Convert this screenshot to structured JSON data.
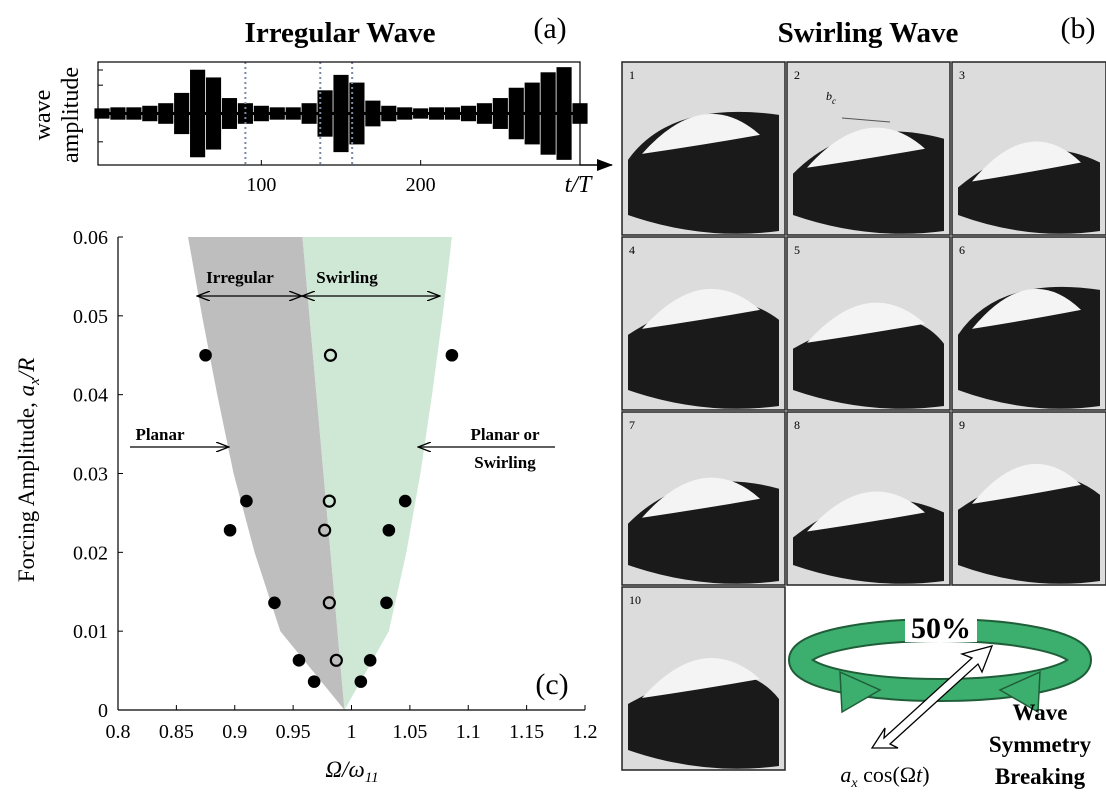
{
  "chart_data": [
    {
      "type": "line",
      "title": "Irregular Wave",
      "panel_label": "(a)",
      "ylabel": [
        "wave",
        "amplitude"
      ],
      "xlabel": "t/T",
      "x": [
        0,
        10,
        20,
        30,
        40,
        50,
        60,
        70,
        80,
        90,
        100,
        110,
        120,
        130,
        140,
        150,
        160,
        170,
        180,
        190,
        200,
        210,
        220,
        230,
        240,
        250,
        260,
        270,
        280,
        290,
        300
      ],
      "values": [
        0.1,
        0.12,
        0.12,
        0.15,
        0.2,
        0.4,
        0.85,
        0.7,
        0.3,
        0.2,
        0.15,
        0.12,
        0.12,
        0.2,
        0.45,
        0.75,
        0.6,
        0.25,
        0.15,
        0.12,
        0.1,
        0.12,
        0.12,
        0.15,
        0.2,
        0.3,
        0.5,
        0.6,
        0.8,
        0.9,
        0.2
      ],
      "color": "#000000",
      "xlim": [
        0,
        300
      ],
      "ylim": [
        -1,
        1
      ],
      "xticks": [
        100,
        200
      ],
      "vlines": [
        90,
        137,
        157
      ]
    },
    {
      "type": "scatter",
      "panel_label": "(c)",
      "xlabel": [
        "Ω/ω",
        "11"
      ],
      "ylabel": [
        "Forcing Amplitude, ",
        "a",
        "x",
        "/R"
      ],
      "xlim": [
        0.8,
        1.2
      ],
      "xticks": [
        0.8,
        0.85,
        0.9,
        0.95,
        1,
        1.05,
        1.1,
        1.15,
        1.2
      ],
      "ylim": [
        0,
        0.06
      ],
      "yticks": [
        0,
        0.01,
        0.02,
        0.03,
        0.04,
        0.05,
        0.06
      ],
      "series": [
        {
          "color": "#000000",
          "fill": "filled",
          "x": [
            0.875,
            1.086,
            0.91,
            1.046,
            0.896,
            1.032,
            0.934,
            1.03,
            0.955,
            1.016,
            0.968,
            1.008
          ],
          "values": [
            0.045,
            0.045,
            0.0265,
            0.0265,
            0.0228,
            0.0228,
            0.0136,
            0.0136,
            0.0063,
            0.0063,
            0.0036,
            0.0036
          ]
        },
        {
          "color": "#000000",
          "fill": "open",
          "x": [
            0.982,
            0.981,
            0.977,
            0.981,
            0.987
          ],
          "values": [
            0.045,
            0.0265,
            0.0228,
            0.0136,
            0.0063
          ]
        }
      ],
      "regions": [
        {
          "color": "#bebebe",
          "y": [
            0,
            0.01,
            0.02,
            0.03,
            0.04,
            0.05,
            0.06
          ],
          "left": [
            0.994,
            0.939,
            0.917,
            0.899,
            0.885,
            0.872,
            0.86
          ],
          "right": [
            0.994,
            0.988,
            0.982,
            0.976,
            0.97,
            0.964,
            0.958
          ]
        },
        {
          "color": "#cfe7d5",
          "y": [
            0,
            0.01,
            0.02,
            0.03,
            0.04,
            0.05,
            0.06
          ],
          "left": [
            0.994,
            0.988,
            0.982,
            0.976,
            0.97,
            0.964,
            0.958
          ],
          "right": [
            0.994,
            1.032,
            1.047,
            1.059,
            1.069,
            1.078,
            1.086
          ]
        }
      ],
      "annotations": [
        "Irregular",
        "Swirling",
        "Planar",
        [
          "Planar or",
          "Swirling"
        ]
      ]
    }
  ],
  "panel_b": {
    "title": "Swirling Wave",
    "panel_label": "(b)",
    "frames": [
      "1",
      "2",
      "3",
      "4",
      "5",
      "6",
      "7",
      "8",
      "9",
      "10"
    ],
    "frame_note": [
      "b",
      "c"
    ],
    "rotation_label": "50%",
    "symmetry_label": [
      "Wave",
      "Symmetry",
      "Breaking"
    ],
    "forcing_label": [
      "a",
      "x",
      " cos(Ω",
      "t",
      ")"
    ]
  }
}
